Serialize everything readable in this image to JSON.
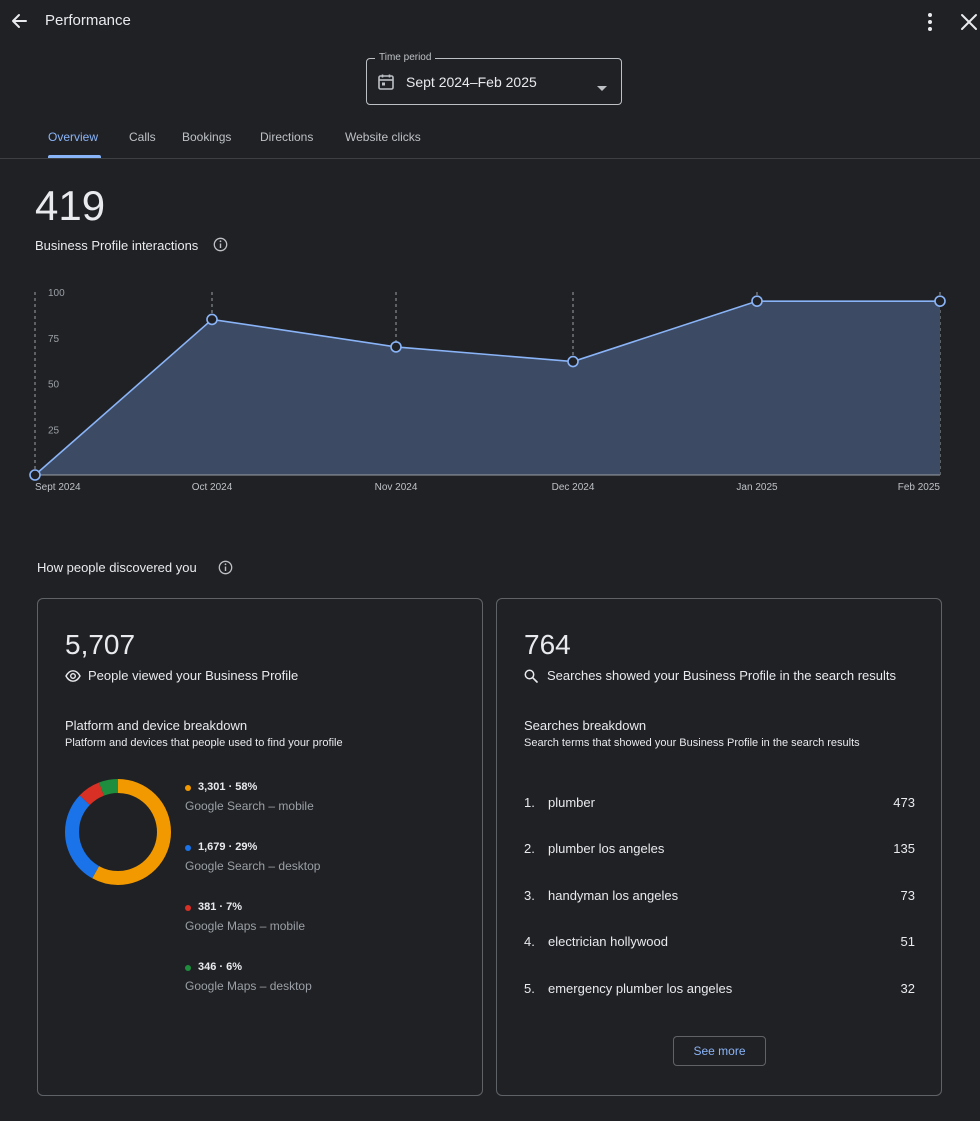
{
  "header": {
    "title": "Performance"
  },
  "time_period": {
    "label": "Time period",
    "value": "Sept 2024–Feb 2025"
  },
  "tabs": [
    {
      "label": "Overview",
      "active": true
    },
    {
      "label": "Calls",
      "active": false
    },
    {
      "label": "Bookings",
      "active": false
    },
    {
      "label": "Directions",
      "active": false
    },
    {
      "label": "Website clicks",
      "active": false
    }
  ],
  "interactions": {
    "value": "419",
    "label": "Business Profile interactions"
  },
  "chart_data": {
    "type": "area",
    "x": [
      "Sept 2024",
      "Oct 2024",
      "Nov 2024",
      "Dec 2024",
      "Jan 2025",
      "Feb 2025"
    ],
    "values": [
      0,
      85,
      70,
      62,
      95,
      95
    ],
    "yticks": [
      25,
      50,
      75,
      100
    ],
    "ylim": [
      0,
      100
    ],
    "grid": "vertical dashed",
    "colors": {
      "line": "#8ab4f8",
      "fill": "#3c4a63"
    }
  },
  "discovered": {
    "title": "How people discovered you"
  },
  "views_card": {
    "value": "5,707",
    "label": "People viewed your Business Profile",
    "breakdown_title": "Platform and device breakdown",
    "breakdown_sub": "Platform and devices that people used to find your profile",
    "platforms": [
      {
        "value": "3,301 · 58%",
        "name": "Google Search – mobile",
        "color": "#f29900",
        "share": 58
      },
      {
        "value": "1,679 · 29%",
        "name": "Google Search – desktop",
        "color": "#1a73e8",
        "share": 29
      },
      {
        "value": "381 · 7%",
        "name": "Google Maps – mobile",
        "color": "#d93025",
        "share": 7
      },
      {
        "value": "346 · 6%",
        "name": "Google Maps – desktop",
        "color": "#1e8e3e",
        "share": 6
      }
    ]
  },
  "searches_card": {
    "value": "764",
    "label": "Searches showed your Business Profile in the search results",
    "breakdown_title": "Searches breakdown",
    "breakdown_sub": "Search terms that showed your Business Profile in the search results",
    "terms": [
      {
        "rank": "1.",
        "term": "plumber",
        "count": "473"
      },
      {
        "rank": "2.",
        "term": "plumber los angeles",
        "count": "135"
      },
      {
        "rank": "3.",
        "term": "handyman los angeles",
        "count": "73"
      },
      {
        "rank": "4.",
        "term": "electrician hollywood",
        "count": "51"
      },
      {
        "rank": "5.",
        "term": "emergency plumber los angeles",
        "count": "32"
      }
    ],
    "see_more": "See more"
  }
}
